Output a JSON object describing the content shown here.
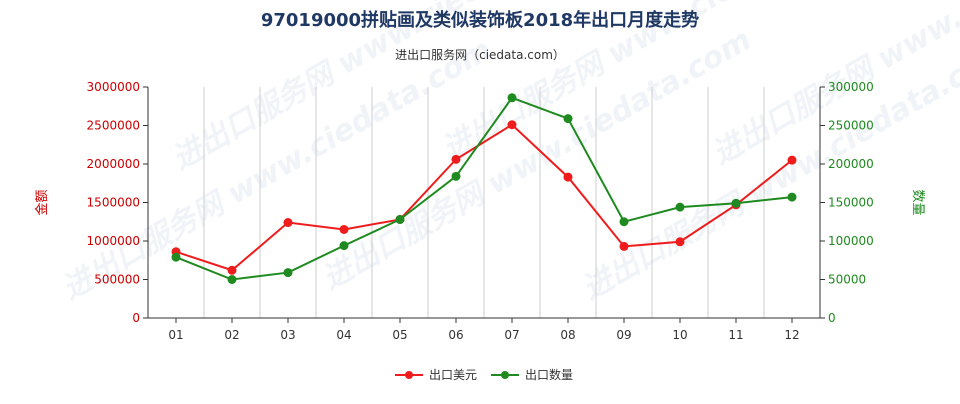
{
  "chart_data": {
    "type": "line",
    "title": "97019000拼贴画及类似装饰板2018年出口月度走势",
    "subtitle": "进出口服务网（ciedata.com）",
    "categories": [
      "01",
      "02",
      "03",
      "04",
      "05",
      "06",
      "07",
      "08",
      "09",
      "10",
      "11",
      "12"
    ],
    "y_left": {
      "label": "金额",
      "ticks": [
        "0",
        "500000",
        "1000000",
        "1500000",
        "2000000",
        "2500000",
        "3000000"
      ],
      "range": [
        0,
        3000000
      ]
    },
    "y_right": {
      "label": "数量",
      "ticks": [
        "0",
        "50000",
        "100000",
        "150000",
        "200000",
        "250000",
        "300000"
      ],
      "range": [
        0,
        300000
      ]
    },
    "series": [
      {
        "name": "出口美元",
        "axis": "left",
        "color": "#ee1c1c",
        "values": [
          860000,
          620000,
          1240000,
          1150000,
          1280000,
          2060000,
          2510000,
          1830000,
          930000,
          990000,
          1470000,
          2050000
        ]
      },
      {
        "name": "出口数量",
        "axis": "right",
        "color": "#1f8a1f",
        "values": [
          79000,
          50000,
          59000,
          94000,
          128000,
          184000,
          286000,
          259000,
          125000,
          144000,
          149000,
          157000
        ]
      }
    ],
    "grid": "vertical",
    "legend_position": "bottom-center"
  },
  "colors": {
    "title": "#1f3864",
    "left_axis": "#cc0000",
    "right_axis": "#1f8a1f",
    "grid": "#cccccc"
  },
  "watermark": "进出口服务网 www.ciedata.com"
}
